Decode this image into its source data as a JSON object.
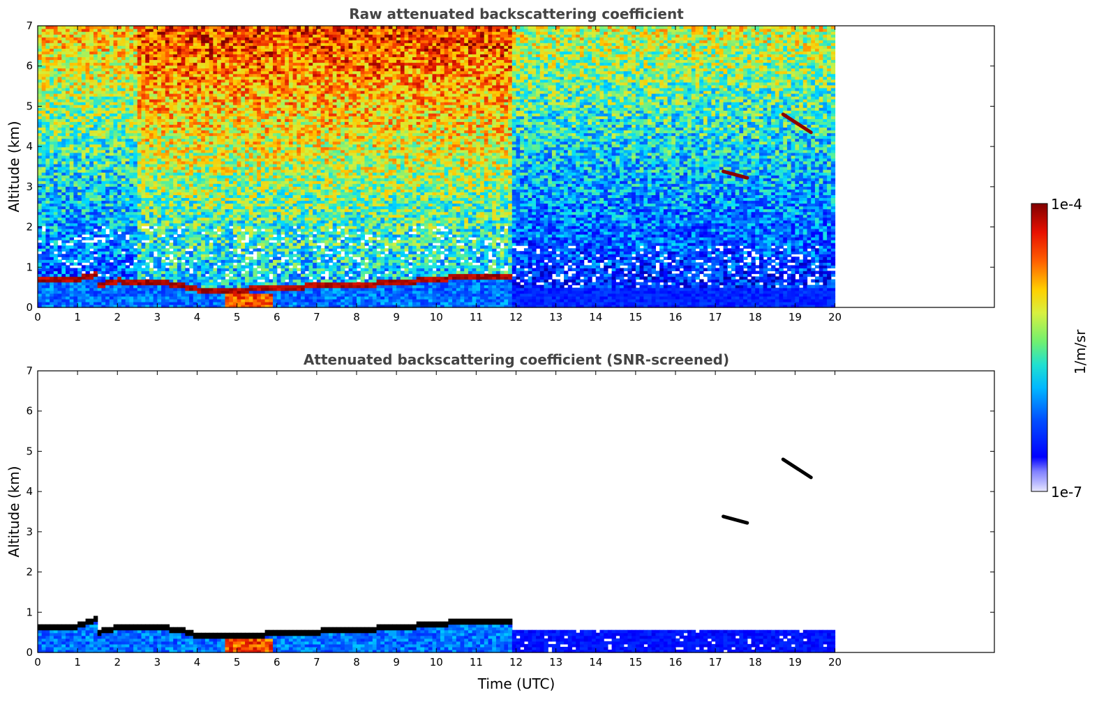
{
  "chart_data": [
    {
      "type": "heatmap",
      "title": "Raw attenuated backscattering coefficient",
      "xlabel": "",
      "ylabel": "Altitude (km)",
      "xlim": [
        0,
        24
      ],
      "ylim": [
        0,
        7
      ],
      "xticks": [
        0,
        1,
        2,
        3,
        4,
        5,
        6,
        7,
        8,
        9,
        10,
        11,
        12,
        13,
        14,
        15,
        16,
        17,
        18,
        19,
        20
      ],
      "yticks": [
        0,
        1,
        2,
        3,
        4,
        5,
        6,
        7
      ],
      "data_end_time": 19.95,
      "features": {
        "boundary_layer_top": [
          [
            0,
            0.65
          ],
          [
            0.5,
            0.65
          ],
          [
            1.0,
            0.7
          ],
          [
            1.4,
            0.8
          ],
          [
            1.5,
            0.55
          ],
          [
            2.0,
            0.65
          ],
          [
            2.5,
            0.6
          ],
          [
            3.0,
            0.6
          ],
          [
            3.5,
            0.55
          ],
          [
            4.0,
            0.42
          ],
          [
            5.0,
            0.42
          ],
          [
            6.0,
            0.47
          ],
          [
            7.0,
            0.52
          ],
          [
            8.0,
            0.55
          ],
          [
            9.0,
            0.6
          ],
          [
            10.0,
            0.7
          ],
          [
            11.0,
            0.75
          ],
          [
            11.85,
            0.78
          ]
        ],
        "elevated_layers": [
          {
            "x": [
              17.2,
              17.8
            ],
            "y": [
              3.38,
              3.22
            ]
          },
          {
            "x": [
              18.7,
              19.4
            ],
            "y": [
              4.8,
              4.35
            ]
          }
        ]
      }
    },
    {
      "type": "heatmap",
      "title": "Attenuated backscattering coefficient (SNR-screened)",
      "xlabel": "Time (UTC)",
      "ylabel": "Altitude (km)",
      "xlim": [
        0,
        24
      ],
      "ylim": [
        0,
        7
      ],
      "xticks": [
        0,
        1,
        2,
        3,
        4,
        5,
        6,
        7,
        8,
        9,
        10,
        11,
        12,
        13,
        14,
        15,
        16,
        17,
        18,
        19,
        20
      ],
      "yticks": [
        0,
        1,
        2,
        3,
        4,
        5,
        6,
        7
      ],
      "data_end_time": 19.95,
      "features": {
        "boundary_layer_top": [
          [
            0,
            0.6
          ],
          [
            0.5,
            0.6
          ],
          [
            1.0,
            0.65
          ],
          [
            1.4,
            0.8
          ],
          [
            1.5,
            0.5
          ],
          [
            2.0,
            0.6
          ],
          [
            2.5,
            0.6
          ],
          [
            3.0,
            0.6
          ],
          [
            3.5,
            0.55
          ],
          [
            4.0,
            0.4
          ],
          [
            5.0,
            0.4
          ],
          [
            6.0,
            0.45
          ],
          [
            7.0,
            0.5
          ],
          [
            8.0,
            0.55
          ],
          [
            9.0,
            0.6
          ],
          [
            10.0,
            0.7
          ],
          [
            11.0,
            0.75
          ],
          [
            11.85,
            0.78
          ]
        ],
        "elevated_layers": [
          {
            "x": [
              17.2,
              17.8
            ],
            "y": [
              3.38,
              3.22
            ]
          },
          {
            "x": [
              18.7,
              19.4
            ],
            "y": [
              4.8,
              4.35
            ]
          }
        ]
      }
    }
  ],
  "colorbar": {
    "label": "1/m/sr",
    "max_label": "1e-4",
    "min_label": "1e-7",
    "scale": "log",
    "range": [
      1e-07,
      0.0001
    ],
    "colormap": "jet"
  }
}
